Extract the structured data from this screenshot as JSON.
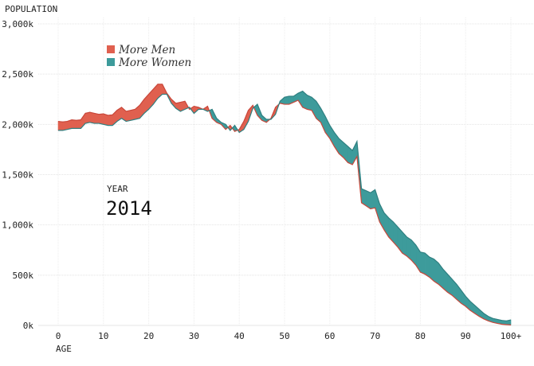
{
  "chart_data": {
    "type": "area",
    "ylabel": "POPULATION",
    "xlabel": "AGE",
    "y_ticks": [
      "0k",
      "500k",
      "1,000k",
      "1,500k",
      "2,000k",
      "2,500k",
      "3,000k"
    ],
    "y_tick_values": [
      0,
      500000,
      1000000,
      1500000,
      2000000,
      2500000,
      3000000
    ],
    "x_ticks": [
      "0",
      "10",
      "20",
      "30",
      "40",
      "50",
      "60",
      "70",
      "80",
      "90",
      "100+"
    ],
    "x_tick_values": [
      0,
      10,
      20,
      30,
      40,
      50,
      60,
      70,
      80,
      90,
      100
    ],
    "xlim": [
      0,
      100
    ],
    "ylim": [
      0,
      3000000
    ],
    "grid": true,
    "legend": [
      {
        "name": "More Men",
        "color": "#e0604f"
      },
      {
        "name": "More Women",
        "color": "#3d9b9b"
      }
    ],
    "annotation": {
      "label": "YEAR",
      "value": "2014"
    },
    "ages": [
      0,
      1,
      2,
      3,
      4,
      5,
      6,
      7,
      8,
      9,
      10,
      11,
      12,
      13,
      14,
      15,
      16,
      17,
      18,
      19,
      20,
      21,
      22,
      23,
      24,
      25,
      26,
      27,
      28,
      29,
      30,
      31,
      32,
      33,
      34,
      35,
      36,
      37,
      38,
      39,
      40,
      41,
      42,
      43,
      44,
      45,
      46,
      47,
      48,
      49,
      50,
      51,
      52,
      53,
      54,
      55,
      56,
      57,
      58,
      59,
      60,
      61,
      62,
      63,
      64,
      65,
      66,
      67,
      68,
      69,
      70,
      71,
      72,
      73,
      74,
      75,
      76,
      77,
      78,
      79,
      80,
      81,
      82,
      83,
      84,
      85,
      86,
      87,
      88,
      89,
      90,
      91,
      92,
      93,
      94,
      95,
      96,
      97,
      98,
      99,
      100
    ],
    "series": [
      {
        "name": "Men",
        "values": [
          2030000,
          2025000,
          2030000,
          2045000,
          2040000,
          2045000,
          2110000,
          2120000,
          2110000,
          2100000,
          2105000,
          2090000,
          2095000,
          2140000,
          2170000,
          2130000,
          2140000,
          2150000,
          2190000,
          2250000,
          2300000,
          2350000,
          2400000,
          2400000,
          2310000,
          2250000,
          2210000,
          2220000,
          2230000,
          2150000,
          2180000,
          2170000,
          2150000,
          2180000,
          2060000,
          2020000,
          2000000,
          1950000,
          1990000,
          1930000,
          1950000,
          2030000,
          2140000,
          2190000,
          2090000,
          2040000,
          2020000,
          2060000,
          2170000,
          2210000,
          2200000,
          2200000,
          2220000,
          2240000,
          2170000,
          2150000,
          2140000,
          2060000,
          2020000,
          1920000,
          1860000,
          1780000,
          1710000,
          1670000,
          1620000,
          1600000,
          1680000,
          1220000,
          1190000,
          1160000,
          1170000,
          1030000,
          950000,
          880000,
          830000,
          780000,
          720000,
          690000,
          650000,
          600000,
          530000,
          510000,
          480000,
          440000,
          410000,
          370000,
          330000,
          300000,
          260000,
          220000,
          190000,
          150000,
          120000,
          90000,
          65000,
          45000,
          30000,
          20000,
          12000,
          8000,
          5000
        ]
      },
      {
        "name": "Women",
        "values": [
          1940000,
          1940000,
          1950000,
          1960000,
          1960000,
          1960000,
          2010000,
          2020000,
          2010000,
          2010000,
          2000000,
          1990000,
          1990000,
          2030000,
          2060000,
          2030000,
          2040000,
          2050000,
          2060000,
          2110000,
          2150000,
          2200000,
          2260000,
          2300000,
          2300000,
          2210000,
          2160000,
          2130000,
          2150000,
          2170000,
          2110000,
          2150000,
          2150000,
          2130000,
          2150000,
          2060000,
          2020000,
          2000000,
          1940000,
          1990000,
          1920000,
          1950000,
          2030000,
          2160000,
          2200000,
          2090000,
          2050000,
          2050000,
          2100000,
          2230000,
          2270000,
          2280000,
          2280000,
          2310000,
          2330000,
          2290000,
          2270000,
          2230000,
          2160000,
          2080000,
          1990000,
          1920000,
          1860000,
          1820000,
          1780000,
          1740000,
          1830000,
          1360000,
          1340000,
          1320000,
          1350000,
          1210000,
          1120000,
          1070000,
          1030000,
          980000,
          930000,
          880000,
          850000,
          800000,
          730000,
          720000,
          680000,
          660000,
          620000,
          560000,
          510000,
          460000,
          410000,
          350000,
          290000,
          240000,
          200000,
          160000,
          120000,
          90000,
          70000,
          60000,
          50000,
          45000,
          55000
        ]
      }
    ]
  }
}
